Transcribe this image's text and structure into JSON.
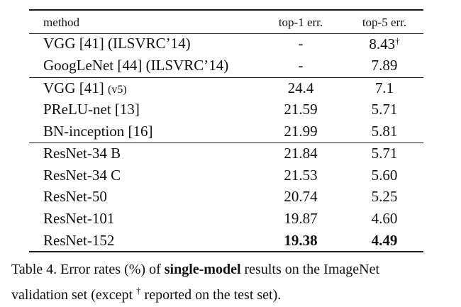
{
  "table": {
    "headers": [
      "method",
      "top-1 err.",
      "top-5 err."
    ],
    "groups": [
      [
        {
          "method": "VGG [41] (ILSVRC’14)",
          "method_suffix": "",
          "top1": "-",
          "top5": "8.43",
          "top5_mark": "†"
        },
        {
          "method": "GoogLeNet [44] (ILSVRC’14)",
          "method_suffix": "",
          "top1": "-",
          "top5": "7.89",
          "top5_mark": ""
        }
      ],
      [
        {
          "method": "VGG [41] ",
          "method_suffix": "(v5)",
          "top1": "24.4",
          "top5": "7.1",
          "top5_mark": ""
        },
        {
          "method": "PReLU-net [13]",
          "method_suffix": "",
          "top1": "21.59",
          "top5": "5.71",
          "top5_mark": ""
        },
        {
          "method": "BN-inception [16]",
          "method_suffix": "",
          "top1": "21.99",
          "top5": "5.81",
          "top5_mark": ""
        }
      ],
      [
        {
          "method": "ResNet-34 B",
          "method_suffix": "",
          "top1": "21.84",
          "top5": "5.71",
          "top5_mark": ""
        },
        {
          "method": "ResNet-34 C",
          "method_suffix": "",
          "top1": "21.53",
          "top5": "5.60",
          "top5_mark": ""
        },
        {
          "method": "ResNet-50",
          "method_suffix": "",
          "top1": "20.74",
          "top5": "5.25",
          "top5_mark": ""
        },
        {
          "method": "ResNet-101",
          "method_suffix": "",
          "top1": "19.87",
          "top5": "4.60",
          "top5_mark": ""
        },
        {
          "method": "ResNet-152",
          "method_suffix": "",
          "top1": "19.38",
          "top5": "4.49",
          "top5_mark": "",
          "bold": true
        }
      ]
    ]
  },
  "caption": {
    "label": "Table 4. Error rates (%) of ",
    "bold_part": "single-model",
    "rest_line1": " results on the ImageNet",
    "line2_start": "validation set (except ",
    "dagger": "†",
    "line2_end": " reported on the test set)."
  }
}
